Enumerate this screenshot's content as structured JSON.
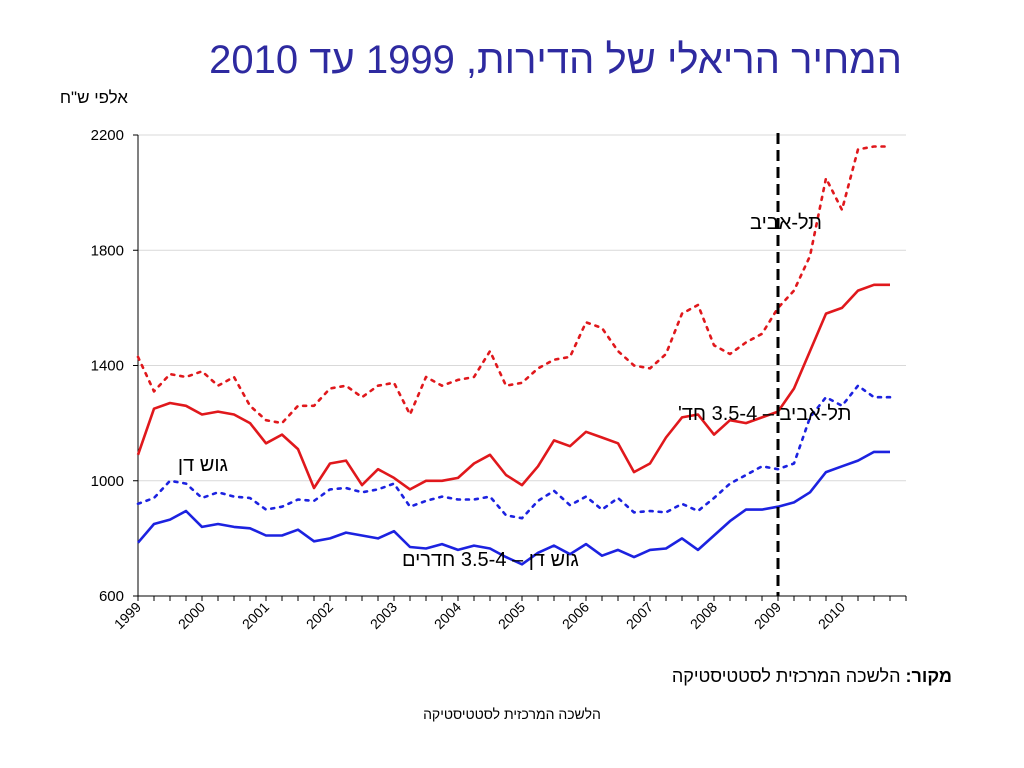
{
  "title": {
    "line": "המחיר הריאלי של הדירות, 1999 עד 2010"
  },
  "source": {
    "label": "מקור:",
    "text": "הלשכה המרכזית לסטטיסטיקה"
  },
  "footer": "הלשכה המרכזית לסטטיסטיקה",
  "colors": {
    "tel_aviv": "#e0181c",
    "gush_dan": "#1c22e0",
    "axis": "#000000",
    "divider": "#000000"
  },
  "chart_data": {
    "type": "line",
    "ylabel": "אלפי ש\"ח",
    "ylim": [
      600,
      2200
    ],
    "yticks": [
      600,
      1000,
      1400,
      1800,
      2200
    ],
    "xlim": [
      1999,
      2011
    ],
    "xtick_labels": [
      "1999",
      "2000",
      "2001",
      "2002",
      "2003",
      "2004",
      "2005",
      "2006",
      "2007",
      "2008",
      "2009",
      "2010"
    ],
    "grid": true,
    "vertical_marker_x": 2009.0,
    "vertical_marker_label": "תל-אביב",
    "x": [
      1999.0,
      1999.25,
      1999.5,
      1999.75,
      2000.0,
      2000.25,
      2000.5,
      2000.75,
      2001.0,
      2001.25,
      2001.5,
      2001.75,
      2002.0,
      2002.25,
      2002.5,
      2002.75,
      2003.0,
      2003.25,
      2003.5,
      2003.75,
      2004.0,
      2004.25,
      2004.5,
      2004.75,
      2005.0,
      2005.25,
      2005.5,
      2005.75,
      2006.0,
      2006.25,
      2006.5,
      2006.75,
      2007.0,
      2007.25,
      2007.5,
      2007.75,
      2008.0,
      2008.25,
      2008.5,
      2008.75,
      2009.0,
      2009.25,
      2009.5,
      2009.75,
      2010.0,
      2010.25,
      2010.5,
      2010.75
    ],
    "series": [
      {
        "name": "",
        "style": "dotted",
        "color_key": "tel_aviv",
        "values": [
          1430,
          1310,
          1370,
          1360,
          1380,
          1330,
          1360,
          1260,
          1210,
          1200,
          1260,
          1260,
          1320,
          1330,
          1290,
          1330,
          1340,
          1230,
          1360,
          1330,
          1350,
          1360,
          1450,
          1330,
          1340,
          1390,
          1420,
          1430,
          1550,
          1530,
          1450,
          1400,
          1390,
          1440,
          1580,
          1610,
          1470,
          1440,
          1480,
          1510,
          1600,
          1660,
          1780,
          2050,
          1940,
          2150,
          2160,
          2160
        ]
      },
      {
        "name": "תל-אביב – 3.5-4 חד'",
        "style": "solid",
        "color_key": "tel_aviv",
        "values": [
          1090,
          1250,
          1270,
          1260,
          1230,
          1240,
          1230,
          1200,
          1130,
          1160,
          1110,
          975,
          1060,
          1070,
          985,
          1040,
          1010,
          970,
          1000,
          1000,
          1010,
          1060,
          1090,
          1020,
          985,
          1050,
          1140,
          1120,
          1170,
          1150,
          1130,
          1030,
          1060,
          1150,
          1220,
          1230,
          1160,
          1210,
          1200,
          1220,
          1240,
          1320,
          1450,
          1580,
          1600,
          1660,
          1680,
          1680
        ]
      },
      {
        "name": "גוש דן",
        "style": "dotted",
        "color_key": "gush_dan",
        "values": [
          920,
          940,
          1000,
          990,
          940,
          960,
          945,
          940,
          900,
          910,
          935,
          930,
          970,
          975,
          960,
          970,
          990,
          910,
          930,
          945,
          935,
          935,
          945,
          880,
          870,
          930,
          965,
          915,
          945,
          900,
          940,
          890,
          895,
          890,
          920,
          895,
          940,
          990,
          1020,
          1050,
          1040,
          1060,
          1220,
          1290,
          1260,
          1330,
          1290,
          1290
        ]
      },
      {
        "name": "גוש דן – 3.5-4 חדרים",
        "style": "solid",
        "color_key": "gush_dan",
        "values": [
          785,
          850,
          865,
          895,
          840,
          850,
          840,
          835,
          810,
          810,
          830,
          790,
          800,
          820,
          810,
          800,
          825,
          770,
          765,
          780,
          760,
          775,
          765,
          735,
          710,
          750,
          775,
          745,
          780,
          740,
          760,
          735,
          760,
          765,
          800,
          760,
          810,
          860,
          900,
          900,
          910,
          925,
          960,
          1030,
          1050,
          1070,
          1100,
          1100
        ]
      }
    ],
    "series_labels": [
      "תל-אביב – 3.5-4 חד'",
      "גוש דן",
      "גוש דן – 3.5-4 חדרים"
    ]
  }
}
